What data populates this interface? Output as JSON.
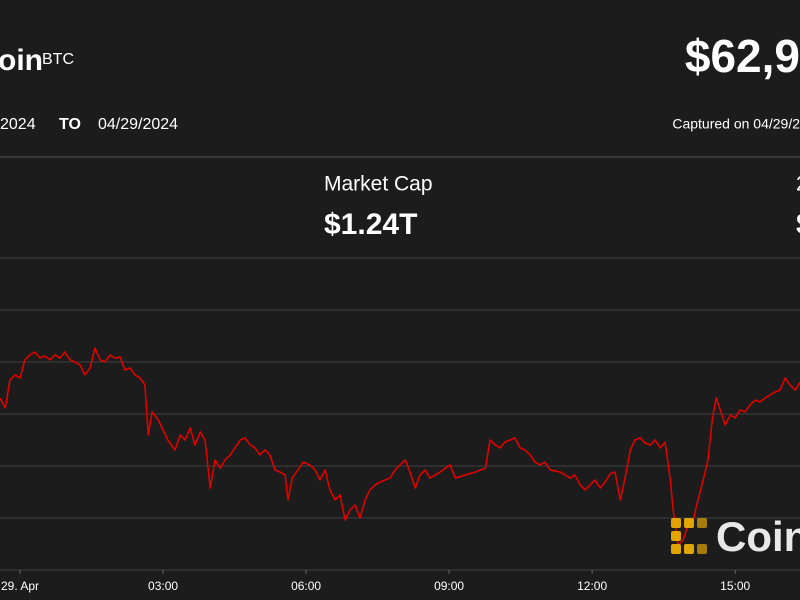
{
  "header": {
    "name": "oin",
    "symbol": "BTC",
    "price": "$62,9",
    "from": "2024",
    "to_label": "TO",
    "to": "04/29/2024",
    "captured": "Captured on 04/29/2"
  },
  "stats": [
    {
      "label": "Market Cap",
      "value": "$1.24T"
    },
    {
      "label": "2",
      "value": "$"
    }
  ],
  "watermark": "Coin",
  "chart_data": {
    "type": "line",
    "color": "#e00000",
    "grid": true,
    "ytick_labels": false,
    "x": [
      -0.42,
      -0.31,
      -0.21,
      -0.1,
      0.0,
      0.1,
      0.21,
      0.31,
      0.42,
      0.52,
      0.63,
      0.73,
      0.84,
      0.94,
      1.05,
      1.15,
      1.26,
      1.36,
      1.47,
      1.57,
      1.68,
      1.78,
      1.89,
      1.99,
      2.1,
      2.2,
      2.31,
      2.41,
      2.52,
      2.62,
      2.69,
      2.77,
      2.9,
      3.0,
      3.1,
      3.25,
      3.36,
      3.46,
      3.57,
      3.67,
      3.78,
      3.88,
      3.99,
      4.09,
      4.2,
      4.3,
      4.41,
      4.62,
      4.72,
      4.83,
      4.93,
      5.03,
      5.14,
      5.24,
      5.35,
      5.45,
      5.56,
      5.62,
      5.71,
      5.83,
      5.94,
      6.08,
      6.19,
      6.29,
      6.4,
      6.5,
      6.61,
      6.71,
      6.82,
      6.92,
      7.03,
      7.13,
      7.24,
      7.34,
      7.45,
      7.55,
      7.76,
      7.87,
      7.97,
      8.08,
      8.18,
      8.29,
      8.39,
      8.5,
      8.6,
      8.81,
      9.02,
      9.13,
      9.34,
      9.55,
      9.76,
      9.86,
      9.97,
      10.07,
      10.17,
      10.28,
      10.38,
      10.49,
      10.59,
      10.7,
      10.8,
      10.91,
      11.01,
      11.12,
      11.33,
      11.54,
      11.64,
      11.75,
      11.85,
      11.96,
      12.06,
      12.17,
      12.27,
      12.38,
      12.48,
      12.59,
      12.69,
      12.8,
      12.9,
      13.01,
      13.11,
      13.22,
      13.32,
      13.43,
      13.53,
      13.64,
      13.7,
      13.8,
      13.91,
      14.01,
      14.12,
      14.22,
      14.33,
      14.43,
      14.52,
      14.6,
      14.69,
      14.79,
      14.9,
      15.0,
      15.1,
      15.21,
      15.31,
      15.42,
      15.52,
      15.63,
      15.73,
      15.84,
      15.94,
      16.05,
      16.15,
      16.26,
      16.36
    ],
    "values": [
      62827,
      62779,
      62914,
      62938,
      62923,
      63010,
      63034,
      63048,
      63019,
      63029,
      63010,
      63034,
      63019,
      63048,
      63010,
      63000,
      62986,
      62938,
      62971,
      63067,
      63010,
      63000,
      63034,
      63019,
      63024,
      62962,
      62971,
      62938,
      62923,
      62889,
      62649,
      62760,
      62721,
      62673,
      62625,
      62577,
      62649,
      62625,
      62683,
      62601,
      62664,
      62625,
      62394,
      62529,
      62490,
      62529,
      62553,
      62625,
      62635,
      62601,
      62587,
      62553,
      62577,
      62553,
      62481,
      62471,
      62457,
      62337,
      62442,
      62481,
      62519,
      62505,
      62481,
      62433,
      62481,
      62385,
      62337,
      62361,
      62240,
      62288,
      62313,
      62250,
      62337,
      62385,
      62409,
      62423,
      62442,
      62481,
      62505,
      62529,
      62471,
      62394,
      62457,
      62481,
      62442,
      62471,
      62505,
      62442,
      62457,
      62471,
      62490,
      62625,
      62601,
      62587,
      62615,
      62625,
      62635,
      62587,
      62577,
      62553,
      62519,
      62505,
      62519,
      62481,
      62471,
      62442,
      62457,
      62409,
      62385,
      62409,
      62433,
      62394,
      62423,
      62462,
      62471,
      62337,
      62442,
      62577,
      62625,
      62635,
      62611,
      62601,
      62625,
      62587,
      62615,
      62433,
      62288,
      62120,
      62144,
      62216,
      62240,
      62337,
      62433,
      62529,
      62721,
      62827,
      62769,
      62697,
      62745,
      62731,
      62769,
      62760,
      62793,
      62817,
      62808,
      62827,
      62841,
      62856,
      62865,
      62923,
      62889,
      62865,
      62904
    ],
    "xlim": [
      -0.42,
      16.36
    ],
    "xticks": [
      {
        "value": 0,
        "label": "29. Apr"
      },
      {
        "value": 3,
        "label": "03:00"
      },
      {
        "value": 6,
        "label": "06:00"
      },
      {
        "value": 9,
        "label": "09:00"
      },
      {
        "value": 12,
        "label": "12:00"
      },
      {
        "value": 15,
        "label": "15:00"
      }
    ],
    "ylim": [
      62000,
      63500
    ],
    "yticks": [
      62000,
      62250,
      62500,
      62750,
      63000,
      63250,
      63500
    ]
  }
}
